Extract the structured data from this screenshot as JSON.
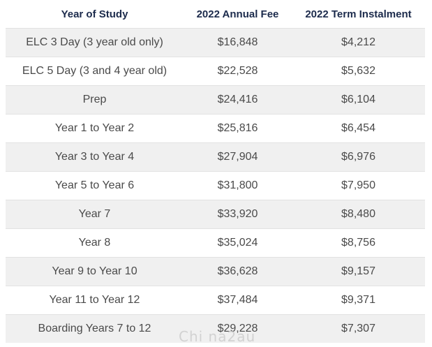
{
  "table": {
    "headers": [
      "Year of Study",
      "2022 Annual Fee",
      "2022 Term Instalment"
    ],
    "rows": [
      [
        "ELC 3 Day (3 year old only)",
        "$16,848",
        "$4,212"
      ],
      [
        "ELC 5 Day (3 and 4 year old)",
        "$22,528",
        "$5,632"
      ],
      [
        "Prep",
        "$24,416",
        "$6,104"
      ],
      [
        "Year 1 to Year 2",
        "$25,816",
        "$6,454"
      ],
      [
        "Year 3 to Year 4",
        "$27,904",
        "$6,976"
      ],
      [
        "Year 5 to Year 6",
        "$31,800",
        "$7,950"
      ],
      [
        "Year 7",
        "$33,920",
        "$8,480"
      ],
      [
        "Year 8",
        "$35,024",
        "$8,756"
      ],
      [
        "Year 9 to Year 10",
        "$36,628",
        "$9,157"
      ],
      [
        "Year 11 to Year 12",
        "$37,484",
        "$9,371"
      ],
      [
        "Boarding Years 7 to 12",
        "$29,228",
        "$7,307"
      ]
    ]
  },
  "watermark": "Chi na2au",
  "colors": {
    "header_text": "#1c2b4c",
    "body_text": "#4a4a4a",
    "shaded_row": "#f0f0f0",
    "row_border": "#e2e2e2"
  }
}
